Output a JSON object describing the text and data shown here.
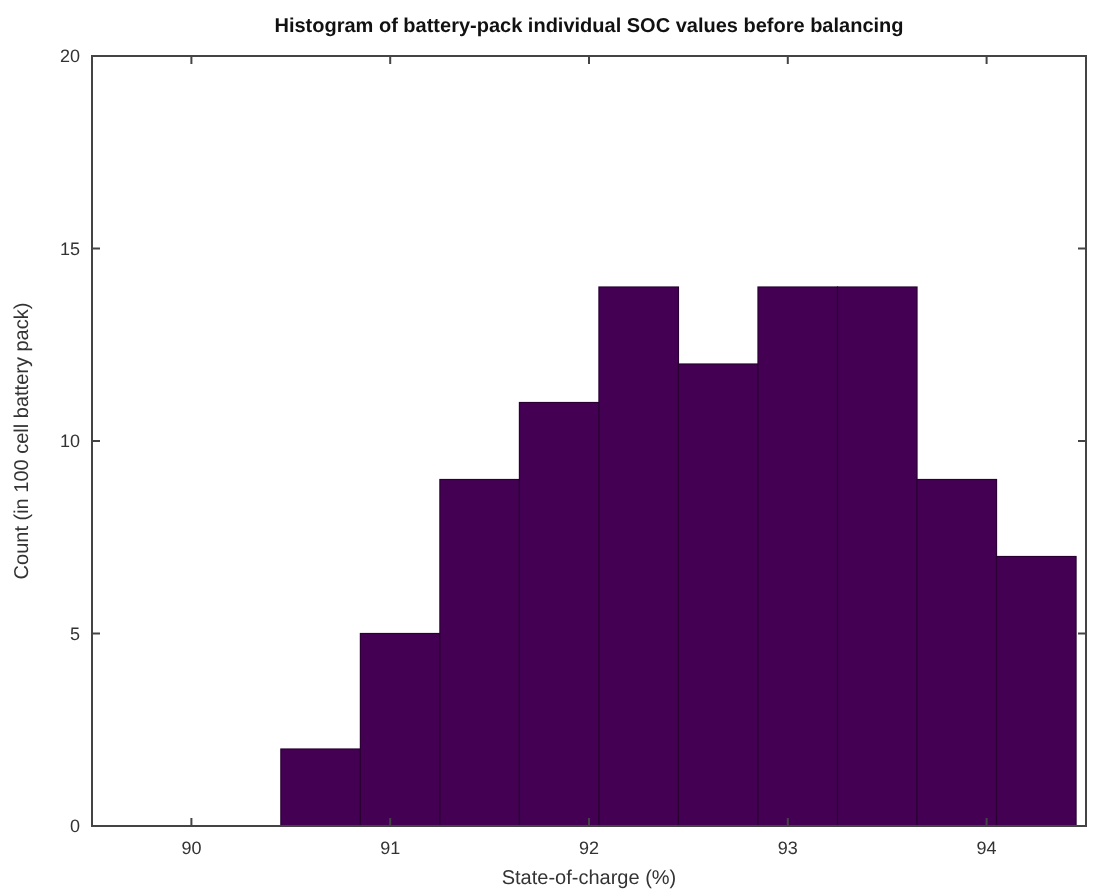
{
  "chart_data": {
    "type": "histogram",
    "title": "Histogram of battery-pack individual SOC values before balancing",
    "xlabel": "State-of-charge (%)",
    "ylabel": "Count (in 100 cell battery pack)",
    "bins": [
      90.45,
      90.85,
      91.25,
      91.65,
      92.05,
      92.45,
      92.85,
      93.25,
      93.65,
      94.05,
      94.45
    ],
    "values": [
      2,
      5,
      9,
      11,
      14,
      12,
      14,
      14,
      9,
      7
    ],
    "color": "#440154",
    "xlim": [
      89.5,
      94.5
    ],
    "xticks": [
      90,
      91,
      92,
      93,
      94
    ],
    "ylim": [
      0,
      20
    ],
    "yticks": [
      0,
      5,
      10,
      15,
      20
    ],
    "grid": false
  }
}
